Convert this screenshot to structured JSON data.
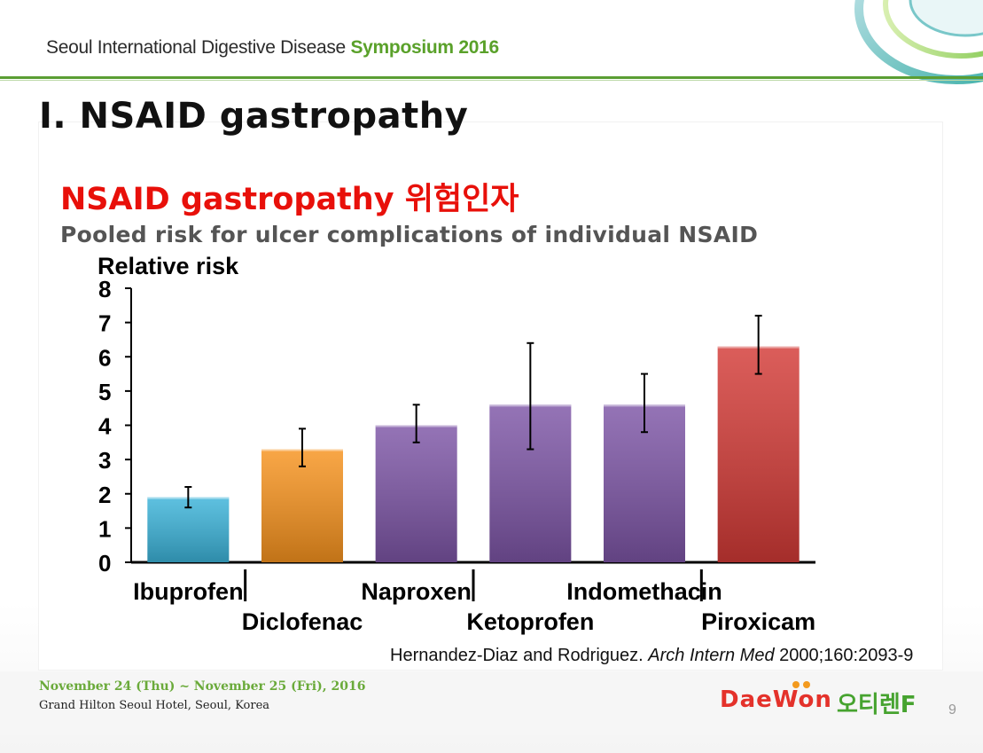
{
  "header": {
    "title_main": "Seoul International Digestive Disease ",
    "title_accent": "Symposium 2016"
  },
  "section_title": "Ⅰ. NSAID gastropathy",
  "subtitle": "NSAID gastropathy 위험인자",
  "description": "Pooled risk for ulcer complications of individual NSAID",
  "chart_data": {
    "type": "bar",
    "ylabel": "Relative risk",
    "ylim": [
      0,
      8
    ],
    "yticks": [
      0,
      1,
      2,
      3,
      4,
      5,
      6,
      7,
      8
    ],
    "categories": [
      "Ibuprofen",
      "Diclofenac",
      "Naproxen",
      "Ketoprofen",
      "Indomethacin",
      "Piroxicam"
    ],
    "values": [
      1.9,
      3.3,
      4.0,
      4.6,
      4.6,
      6.3
    ],
    "ci_low": [
      1.6,
      2.8,
      3.5,
      3.3,
      3.8,
      5.5
    ],
    "ci_high": [
      2.2,
      3.9,
      4.6,
      6.4,
      5.5,
      7.2
    ],
    "colors": [
      "#3bb3d9",
      "#f7931e",
      "#7d55a6",
      "#7d55a6",
      "#7d55a6",
      "#d33a36"
    ],
    "error_bars": true,
    "grid": false
  },
  "citation": {
    "authors": "Hernandez-Diaz and Rodriguez. ",
    "journal": "Arch Intern Med",
    "ref": " 2000;160:2093-9"
  },
  "footer": {
    "dates": "November 24 (Thu) ~ November 25 (Fri), 2016",
    "venue": "Grand Hilton Seoul Hotel, Seoul, Korea",
    "logo_daewon": "DaeWon",
    "logo_product": "오티렌F",
    "page_number": "9"
  }
}
